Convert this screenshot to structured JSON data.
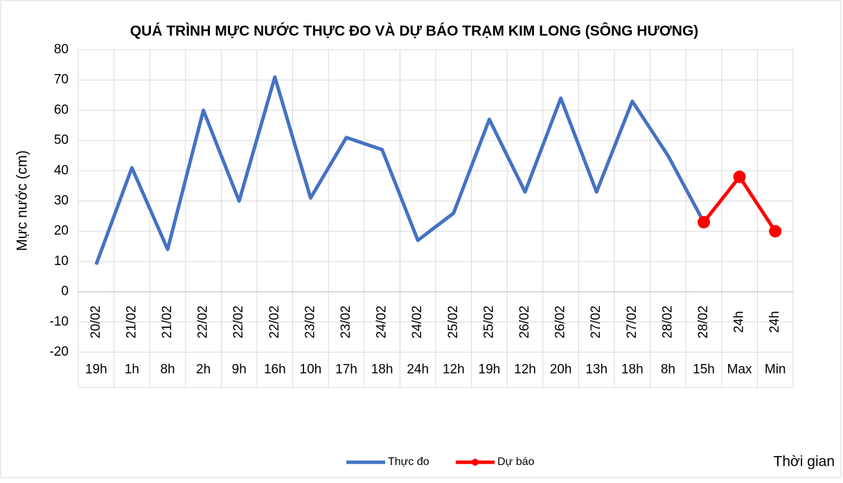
{
  "chart_data": {
    "type": "line",
    "title": "QUÁ TRÌNH MỰC NƯỚC THỰC ĐO VÀ DỰ BÁO TRẠM KIM LONG (SÔNG HƯƠNG)",
    "y_label": "Mực nước (cm)",
    "x_label": "Thời gian",
    "categories": [
      [
        "20/02",
        "19h"
      ],
      [
        "21/02",
        "1h"
      ],
      [
        "21/02",
        "8h"
      ],
      [
        "22/02",
        "2h"
      ],
      [
        "22/02",
        "9h"
      ],
      [
        "22/02",
        "16h"
      ],
      [
        "23/02",
        "10h"
      ],
      [
        "23/02",
        "17h"
      ],
      [
        "24/02",
        "18h"
      ],
      [
        "24/02",
        "24h"
      ],
      [
        "25/02",
        "12h"
      ],
      [
        "25/02",
        "19h"
      ],
      [
        "26/02",
        "12h"
      ],
      [
        "26/02",
        "20h"
      ],
      [
        "27/02",
        "13h"
      ],
      [
        "27/02",
        "18h"
      ],
      [
        "28/02",
        "8h"
      ],
      [
        "28/02",
        "15h"
      ],
      [
        "24h",
        "Max"
      ],
      [
        "24h",
        "Min"
      ]
    ],
    "series": [
      {
        "name": "Thực đo",
        "color": "#4472c4",
        "markers": false,
        "values": [
          9,
          41,
          14,
          60,
          30,
          71,
          31,
          51,
          47,
          17,
          26,
          57,
          33,
          64,
          33,
          63,
          45,
          23,
          null,
          null
        ]
      },
      {
        "name": "Dự báo",
        "color": "#ff0000",
        "markers": true,
        "values": [
          null,
          null,
          null,
          null,
          null,
          null,
          null,
          null,
          null,
          null,
          null,
          null,
          null,
          null,
          null,
          null,
          null,
          23,
          38,
          20
        ]
      }
    ],
    "ylim": [
      -20,
      80
    ],
    "yticks": [
      -20,
      -10,
      0,
      10,
      20,
      30,
      40,
      50,
      60,
      70,
      80
    ],
    "grid": true,
    "legend": "bottom"
  }
}
